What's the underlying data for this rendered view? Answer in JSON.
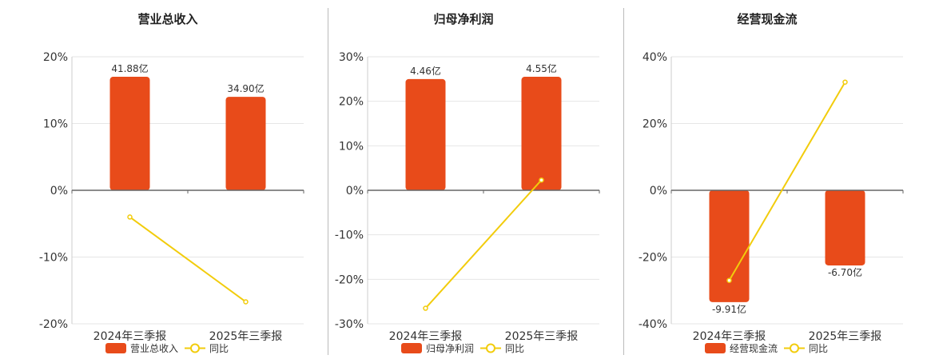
{
  "colors": {
    "bar": "#E84B1A",
    "line": "#F2CC0C",
    "grid": "#e6e6e6",
    "axis": "#666666"
  },
  "chart_data": [
    {
      "type": "bar",
      "title": "营业总收入",
      "categories": [
        "2024年三季报",
        "2025年三季报"
      ],
      "bar_labels": [
        "41.88亿",
        "34.90亿"
      ],
      "bar_values": [
        41.88,
        34.9
      ],
      "bar_display_pct": [
        17,
        14
      ],
      "line_values": [
        -4.0,
        -16.7
      ],
      "ylim": [
        -20,
        20
      ],
      "yticks": [
        20,
        10,
        0,
        -10,
        -20
      ],
      "tick_labels": [
        "20%",
        "10%",
        "0%",
        "-10%",
        "-20%"
      ],
      "legend": [
        "营业总收入",
        "同比"
      ]
    },
    {
      "type": "bar",
      "title": "归母净利润",
      "categories": [
        "2024年三季报",
        "2025年三季报"
      ],
      "bar_labels": [
        "4.46亿",
        "4.55亿"
      ],
      "bar_values": [
        4.46,
        4.55
      ],
      "bar_display_pct": [
        25,
        25.5
      ],
      "line_values": [
        -26.5,
        2.3
      ],
      "ylim": [
        -30,
        30
      ],
      "yticks": [
        30,
        20,
        10,
        0,
        -10,
        -20,
        -30
      ],
      "tick_labels": [
        "30%",
        "20%",
        "10%",
        "0%",
        "-10%",
        "-20%",
        "-30%"
      ],
      "legend": [
        "归母净利润",
        "同比"
      ]
    },
    {
      "type": "bar",
      "title": "经营现金流",
      "categories": [
        "2024年三季报",
        "2025年三季报"
      ],
      "bar_labels": [
        "-9.91亿",
        "-6.70亿"
      ],
      "bar_values": [
        -9.91,
        -6.7
      ],
      "bar_display_pct": [
        -33.5,
        -22.5
      ],
      "line_values": [
        -27.0,
        32.4
      ],
      "ylim": [
        -40,
        40
      ],
      "yticks": [
        40,
        20,
        0,
        -20,
        -40
      ],
      "tick_labels": [
        "40%",
        "20%",
        "0%",
        "-20%",
        "-40%"
      ],
      "legend": [
        "经营现金流",
        "同比"
      ]
    }
  ]
}
